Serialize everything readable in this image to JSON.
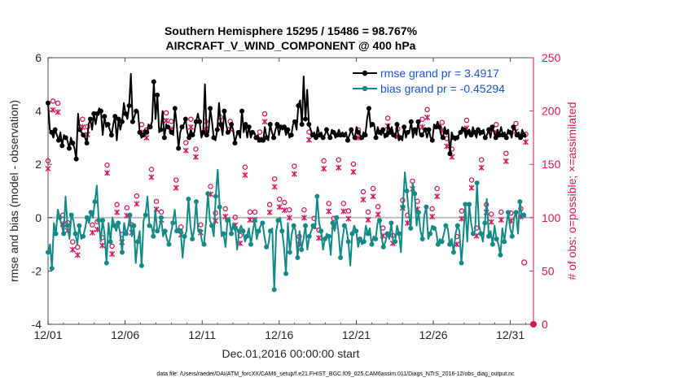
{
  "chart_data": {
    "type": "line",
    "title": "Southern Hemisphere 15295 / 15486 = 98.767%",
    "subtitle": "AIRCRAFT_V_WIND_COMPONENT @ 400 hPa",
    "xlabel": "Dec.01,2016 00:00:00 start",
    "ylabel_left": "rmse and bias (model - observation)",
    "ylabel_right": "# of obs: o=possible; ×=assimilated",
    "footnote": "data file: /Users/raeder/DAI/ATM_forcXX/CAM6_setup/f.e21.FHIST_BGC.f09_025.CAM6assim.011/Diags_NTrS_2016-12/obs_diag_output.nc",
    "xlim": [
      0,
      31.5
    ],
    "ylim_left": [
      -4,
      6
    ],
    "ylim_right": [
      0,
      250
    ],
    "x_ticks": [
      0,
      5,
      10,
      15,
      20,
      25,
      30
    ],
    "x_tick_labels": [
      "12/01",
      "12/06",
      "12/11",
      "12/16",
      "12/21",
      "12/26",
      "12/31"
    ],
    "y_left_ticks": [
      -4,
      -2,
      0,
      2,
      4,
      6
    ],
    "y_left_tick_labels": [
      "-4",
      "-2",
      "0",
      "2",
      "4",
      "6"
    ],
    "y_right_ticks": [
      0,
      50,
      100,
      150,
      200,
      250
    ],
    "y_right_tick_labels": [
      "0",
      "50",
      "100",
      "150",
      "200",
      "250"
    ],
    "legend_position": "top-right",
    "colors": {
      "rmse": "#000000",
      "bias": "#138a87",
      "obs": "#d6175e",
      "zero_line": "#bdbdbd"
    },
    "series": [
      {
        "name": "rmse grand pr = 3.4917",
        "axis": "left",
        "values": [
          4.3,
          3.3,
          3.2,
          3.0,
          3.3,
          3.1,
          2.9,
          3.2,
          2.7,
          3.1,
          3.0,
          2.9,
          2.6,
          3.0,
          2.8,
          2.6,
          2.2,
          3.9,
          3.3,
          3.2,
          3.1,
          3.0,
          2.8,
          3.5,
          3.7,
          3.3,
          3.9,
          3.5,
          3.9,
          4.1,
          4.0,
          3.1,
          3.8,
          3.4,
          3.5,
          3.3,
          3.1,
          3.5,
          3.8,
          2.9,
          3.7,
          3.3,
          3.6,
          4.3,
          3.9,
          3.7,
          4.2,
          5.4,
          3.6,
          3.8,
          4.0,
          4.0,
          3.2,
          3.0,
          3.1,
          3.3,
          3.2,
          3.5,
          3.4,
          3.6,
          5.1,
          3.7,
          4.6,
          3.2,
          3.3,
          4.0,
          3.0,
          3.5,
          3.4,
          3.3,
          3.2,
          3.1,
          4.1,
          3.5,
          2.6,
          3.2,
          3.4,
          3.5,
          3.7,
          3.2,
          3.0,
          3.3,
          3.1,
          3.2,
          3.6,
          3.9,
          3.6,
          3.0,
          3.2,
          5.0,
          3.1,
          3.2,
          4.1,
          3.6,
          3.0,
          2.9,
          3.3,
          4.3,
          3.5,
          3.1,
          4.0,
          3.5,
          3.2,
          3.2,
          3.5,
          3.3,
          2.8,
          3.1,
          3.2,
          3.0,
          4.0,
          3.2,
          3.5,
          3.0,
          3.4,
          3.0,
          3.2,
          3.2,
          3.0,
          3.1,
          2.9,
          3.0,
          2.9,
          3.4,
          3.0,
          2.9,
          3.5,
          3.2,
          3.0,
          3.3,
          3.5,
          3.1,
          3.4,
          3.3,
          3.4,
          3.1,
          3.3,
          3.0,
          3.1,
          3.5,
          3.6,
          3.3,
          4.2,
          4.4,
          3.5,
          5.3,
          3.7,
          4.8,
          3.5,
          3.3,
          3.1,
          3.2,
          3.0,
          3.4,
          3.1,
          3.2,
          3.0,
          3.1,
          3.3,
          3.1,
          3.0,
          3.3,
          3.2,
          3.0,
          3.1,
          3.3,
          3.1,
          3.2,
          3.1,
          3.2,
          2.9,
          3.1,
          3.3,
          3.1,
          3.0,
          3.4,
          3.2,
          3.1,
          3.0,
          3.2,
          3.1,
          3.7,
          4.1,
          3.4,
          3.5,
          3.5,
          3.0,
          3.4,
          3.2,
          3.1,
          3.3,
          3.0,
          3.1,
          3.5,
          3.2,
          3.4,
          3.1,
          3.0,
          3.5,
          2.9,
          3.0,
          2.9,
          3.4,
          3.0,
          3.2,
          3.2,
          3.6,
          3.0,
          3.3,
          3.1,
          3.6,
          3.1,
          3.1,
          3.2,
          3.3,
          3.0,
          3.3,
          3.0,
          2.9,
          3.5,
          3.4,
          3.6,
          3.4,
          3.1,
          3.0,
          3.4,
          3.2,
          3.3,
          2.4,
          3.2,
          3.0,
          2.9,
          3.0,
          3.1,
          3.2,
          3.4,
          3.3,
          3.0,
          3.2,
          3.3,
          3.1,
          3.4,
          3.2,
          3.0,
          3.3,
          3.1,
          3.2,
          3.3,
          3.0,
          3.1,
          3.3,
          3.0,
          3.4,
          3.2,
          3.0,
          3.3,
          3.1,
          3.4,
          3.1,
          3.2,
          3.0,
          3.3,
          3.2,
          3.0,
          3.4,
          3.3,
          3.1,
          3.2,
          3.0,
          3.3,
          3.1,
          3.0
        ]
      },
      {
        "name": "bias grand pr = -0.45294",
        "axis": "left",
        "values": [
          -1.3,
          -1.0,
          -1.9,
          -0.2,
          -0.6,
          0.3,
          0.0,
          -0.3,
          -0.6,
          0.8,
          -0.3,
          -0.8,
          0.1,
          -0.1,
          -0.6,
          -1.0,
          -0.3,
          -0.8,
          -0.7,
          -0.4,
          0.0,
          -0.2,
          0.2,
          0.0,
          0.6,
          1.2,
          -0.1,
          -0.9,
          -0.1,
          -0.6,
          -1.7,
          -0.2,
          -0.9,
          0.0,
          -0.3,
          -0.5,
          -0.2,
          -0.6,
          -1.3,
          -0.2,
          -0.6,
          -0.4,
          0.1,
          -0.7,
          -0.3,
          -1.7,
          -0.9,
          -0.5,
          -1.8,
          -0.1,
          0.1,
          0.8,
          -0.3,
          -0.3,
          -0.7,
          0.3,
          -0.5,
          -0.4,
          0.0,
          -0.7,
          -0.5,
          -0.8,
          -1.0,
          -0.6,
          -0.2,
          0.3,
          -0.5,
          -0.4,
          -0.5,
          -1.5,
          -0.7,
          -0.5,
          0.7,
          -0.3,
          -0.8,
          -0.4,
          0.6,
          -0.5,
          -0.5,
          -0.9,
          -1.0,
          -0.2,
          0.9,
          -0.1,
          -0.3,
          -0.7,
          0.8,
          1.8,
          0.4,
          -0.7,
          -0.6,
          -1.1,
          -0.1,
          0.0,
          -0.6,
          -0.2,
          -0.4,
          -1.2,
          -0.5,
          -0.3,
          -0.5,
          -0.9,
          -0.7,
          -0.4,
          -1.0,
          -0.5,
          -0.1,
          -0.8,
          -0.5,
          -0.3,
          -0.2,
          -0.7,
          -1.1,
          -1.0,
          -0.5,
          -0.4,
          -2.7,
          -0.5,
          -0.1,
          0.0,
          -0.5,
          -1.1,
          -2.1,
          -0.2,
          -1.3,
          -0.6,
          -0.3,
          -0.5,
          -1.5,
          -0.5,
          -1.2,
          -0.8,
          -0.3,
          -1.2,
          -0.7,
          -0.5,
          -0.3,
          -0.4,
          0.8,
          -0.2,
          -0.5,
          -1.2,
          -0.8,
          -0.6,
          -0.7,
          -1.4,
          -0.2,
          -0.5,
          0.0,
          -0.6,
          -1.5,
          -0.8,
          -0.3,
          -0.4,
          -0.9,
          -1.8,
          -0.6,
          -0.3,
          -0.5,
          -1.1,
          -0.8,
          -1.0,
          -0.9,
          -0.3,
          -0.6,
          -0.4,
          -1.0,
          -0.7,
          -0.8,
          -0.2,
          -0.1,
          -0.7,
          -1.1,
          -0.9,
          -0.6,
          -0.8,
          -0.2,
          -0.9,
          -0.9,
          -0.3,
          -0.6,
          -1.3,
          0.4,
          1.7,
          1.0,
          0.2,
          -0.4,
          1.3,
          0.9,
          -0.3,
          0.2,
          -0.5,
          -0.8,
          0.1,
          0.4,
          -0.8,
          -0.6,
          -0.3,
          -0.4,
          -0.5,
          -1.0,
          -0.8,
          -0.9,
          -0.6,
          -0.3,
          -0.4,
          -1.0,
          -0.8,
          -1.3,
          -0.6,
          -0.3,
          -0.5,
          -1.7,
          -0.7,
          0.5,
          -0.9,
          0.5,
          -0.2,
          -0.6,
          -0.5,
          1.3,
          -0.3,
          -0.6,
          -0.9,
          -0.2,
          0.7,
          -0.7,
          -0.5,
          -1.0,
          -0.3,
          -0.8,
          -1.0,
          -1.4,
          -0.4,
          -0.9,
          -0.3,
          0.2,
          -0.4,
          -0.7,
          0.0,
          0.2,
          -0.6,
          0.6,
          0.0,
          0.1,
          0.0
        ]
      },
      {
        "name": "possible",
        "axis": "right",
        "marker": "o",
        "values": [
          151,
          207,
          205,
          100,
          93,
          75,
          70,
          190,
          183,
          91,
          94,
          79,
          147,
          71,
          110,
          82,
          107,
          91,
          118,
          185,
          180,
          143,
          113,
          103,
          196,
          188,
          133,
          89,
          168,
          190,
          162,
          91,
          188,
          127,
          102,
          192,
          106,
          188,
          98,
          81,
          145,
          103,
          103,
          178,
          195,
          110,
          134,
          115,
          112,
          105,
          146,
          80,
          105,
          178,
          97,
          86,
          151,
          111,
          97,
          152,
          111,
          104,
          148,
          180,
          122,
          103,
          125,
          108,
          88,
          191,
          81,
          181,
          114,
          100,
          132,
          113,
          190,
          199,
          106,
          125,
          187,
          172,
          162,
          80,
          104,
          189,
          133,
          88,
          152,
          110,
          101,
          185,
          103,
          158,
          102,
          186,
          106,
          176
        ]
      },
      {
        "name": "assimilated",
        "axis": "right",
        "marker": "x",
        "values": [
          149,
          204,
          202,
          97,
          91,
          73,
          68,
          188,
          181,
          89,
          92,
          77,
          145,
          69,
          108,
          80,
          105,
          89,
          116,
          183,
          178,
          141,
          111,
          101,
          194,
          186,
          131,
          87,
          166,
          188,
          160,
          89,
          186,
          125,
          100,
          190,
          104,
          186,
          96,
          79,
          143,
          101,
          101,
          176,
          193,
          108,
          132,
          113,
          110,
          103,
          144,
          78,
          103,
          176,
          95,
          84,
          149,
          109,
          95,
          150,
          109,
          102,
          146,
          178,
          120,
          101,
          123,
          106,
          86,
          189,
          79,
          179,
          112,
          98,
          130,
          111,
          188,
          197,
          104,
          123,
          185,
          170,
          160,
          78,
          102,
          187,
          131,
          86,
          150,
          108,
          99,
          183,
          101,
          156,
          100,
          184,
          104,
          174
        ]
      }
    ]
  },
  "legend": {
    "rmse_label": "rmse grand pr = 3.4917",
    "bias_label": "bias grand pr = -0.45294"
  }
}
